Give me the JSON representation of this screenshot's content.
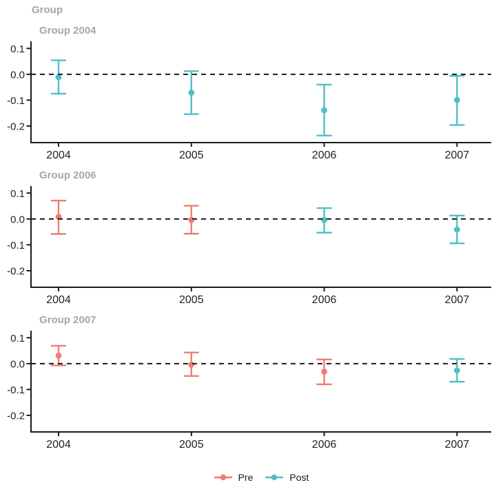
{
  "title": "Group",
  "colors": {
    "pre": "#ED7D72",
    "post": "#4FBFC7",
    "title_gray": "#A6A6A6",
    "axis": "#1a1a1a",
    "tick_text": "#1f1f1f",
    "zero_line": "#1a1a1a",
    "background": "#ffffff"
  },
  "legend": [
    {
      "label": "Pre",
      "color_key": "pre"
    },
    {
      "label": "Post",
      "color_key": "post"
    }
  ],
  "chart_data": {
    "type": "scatter",
    "subtype": "pointrange-error-bars-faceted",
    "title": "Group",
    "x_tick_labels": [
      "2004",
      "2005",
      "2006",
      "2007"
    ],
    "x_values": [
      2004,
      2005,
      2006,
      2007
    ],
    "y_ticks": [
      0.1,
      0.0,
      -0.1,
      -0.2
    ],
    "y_tick_labels": [
      "0.1",
      "0.0",
      "-0.1",
      "-0.2"
    ],
    "ylim": [
      -0.264,
      0.122
    ],
    "zero_reference_line": 0,
    "grid": false,
    "legend_position": "bottom",
    "facets": [
      {
        "title": "Group 2004",
        "points": [
          {
            "year": 2004,
            "estimate": -0.011,
            "ci_low": -0.075,
            "ci_high": 0.054,
            "phase": "Post"
          },
          {
            "year": 2005,
            "estimate": -0.071,
            "ci_low": -0.154,
            "ci_high": 0.012,
            "phase": "Post"
          },
          {
            "year": 2006,
            "estimate": -0.139,
            "ci_low": -0.237,
            "ci_high": -0.04,
            "phase": "Post"
          },
          {
            "year": 2007,
            "estimate": -0.099,
            "ci_low": -0.196,
            "ci_high": -0.006,
            "phase": "Post"
          }
        ]
      },
      {
        "title": "Group 2006",
        "points": [
          {
            "year": 2004,
            "estimate": 0.008,
            "ci_low": -0.058,
            "ci_high": 0.071,
            "phase": "Pre"
          },
          {
            "year": 2005,
            "estimate": -0.004,
            "ci_low": -0.057,
            "ci_high": 0.051,
            "phase": "Pre"
          },
          {
            "year": 2006,
            "estimate": -0.004,
            "ci_low": -0.053,
            "ci_high": 0.042,
            "phase": "Post"
          },
          {
            "year": 2007,
            "estimate": -0.041,
            "ci_low": -0.094,
            "ci_high": 0.013,
            "phase": "Post"
          }
        ]
      },
      {
        "title": "Group 2007",
        "points": [
          {
            "year": 2004,
            "estimate": 0.031,
            "ci_low": -0.007,
            "ci_high": 0.069,
            "phase": "Pre"
          },
          {
            "year": 2005,
            "estimate": -0.004,
            "ci_low": -0.048,
            "ci_high": 0.043,
            "phase": "Pre"
          },
          {
            "year": 2006,
            "estimate": -0.031,
            "ci_low": -0.08,
            "ci_high": 0.016,
            "phase": "Pre"
          },
          {
            "year": 2007,
            "estimate": -0.026,
            "ci_low": -0.07,
            "ci_high": 0.018,
            "phase": "Post"
          }
        ]
      }
    ]
  }
}
